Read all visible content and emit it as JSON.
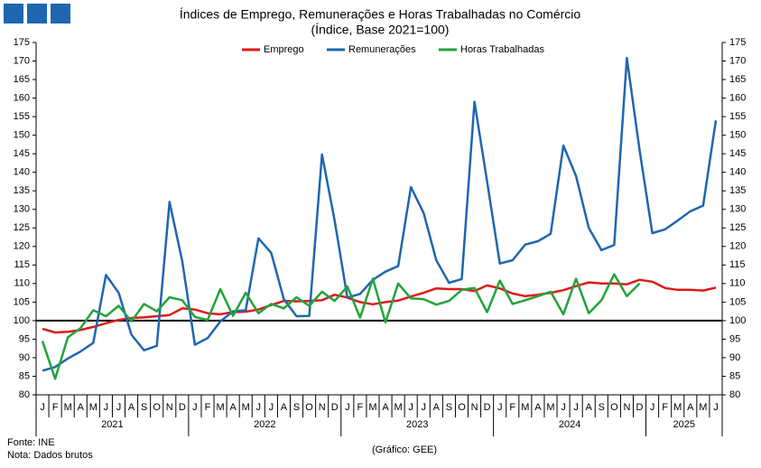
{
  "chart_data": {
    "type": "line",
    "title": "Índices de Emprego, Remunerações e Horas Trabalhadas no Comércio",
    "subtitle": "(Índice, Base 2021=100)",
    "categories": [
      "J",
      "F",
      "M",
      "A",
      "M",
      "J",
      "J",
      "A",
      "S",
      "O",
      "N",
      "D",
      "J",
      "F",
      "M",
      "A",
      "M",
      "J",
      "J",
      "A",
      "S",
      "O",
      "N",
      "D",
      "J",
      "F",
      "M",
      "A",
      "M",
      "J",
      "J",
      "A",
      "S",
      "O",
      "N",
      "D",
      "J",
      "F",
      "M",
      "A",
      "M",
      "J",
      "J",
      "A",
      "S",
      "O",
      "N",
      "D",
      "J",
      "F",
      "M",
      "A",
      "M",
      "J"
    ],
    "years": [
      "2021",
      "2022",
      "2023",
      "2024",
      "2025"
    ],
    "series": [
      {
        "name": "Emprego",
        "color": "#e0191b",
        "values": [
          97.8,
          96.8,
          97,
          97.5,
          98.3,
          99.3,
          100.2,
          100.7,
          100.9,
          101.2,
          101.5,
          103.3,
          103,
          102,
          101.7,
          102.3,
          102.4,
          103,
          104.2,
          105.3,
          105.2,
          105.3,
          105.5,
          107,
          106.2,
          105,
          104.4,
          105,
          105.4,
          106.5,
          107.5,
          108.7,
          108.5,
          108.5,
          108,
          109.5,
          108.7,
          107.3,
          106.6,
          107,
          107.5,
          108.2,
          109.3,
          110.3,
          110,
          110,
          109.8,
          111,
          110.5,
          108.8,
          108.3,
          108.3,
          108.1,
          108.9
        ]
      },
      {
        "name": "Remunerações",
        "color": "#1f66b0",
        "values": [
          86.5,
          87.5,
          89.8,
          91.7,
          94,
          112.3,
          107.5,
          96.2,
          92,
          93.2,
          132,
          116,
          93.5,
          95.3,
          99.8,
          102.5,
          102.8,
          122.2,
          118.3,
          105.8,
          101.2,
          101.3,
          144.8,
          127,
          106.2,
          107.2,
          111,
          113.2,
          114.7,
          136,
          129,
          116.3,
          110.2,
          111.2,
          159,
          137.5,
          115.4,
          116.3,
          120.5,
          121.4,
          123.4,
          147.2,
          139,
          125,
          119,
          120.4,
          170.8,
          146,
          123.6,
          124.6,
          127,
          129.5,
          131,
          154
        ]
      },
      {
        "name": "Horas Trabalhadas",
        "color": "#22a33a",
        "values": [
          94.5,
          84.3,
          95.5,
          98,
          102.8,
          101.2,
          104,
          99.8,
          104.5,
          102.5,
          106.3,
          105.5,
          101,
          100.2,
          108.5,
          101.3,
          107.5,
          102,
          104.5,
          103.3,
          106.3,
          104,
          107.8,
          105.3,
          109.2,
          100.8,
          111.3,
          99.5,
          110,
          106,
          105.8,
          104.3,
          105.3,
          108.3,
          108.8,
          102.3,
          110.8,
          104.5,
          105.5,
          106.6,
          107.8,
          101.7,
          111.3,
          102,
          105.5,
          112.5,
          106.6,
          110,
          null,
          null,
          null,
          null,
          null,
          null
        ]
      }
    ],
    "reference_line": 100,
    "ylim": [
      80,
      175
    ],
    "yticks": [
      80,
      85,
      90,
      95,
      100,
      105,
      110,
      115,
      120,
      125,
      130,
      135,
      140,
      145,
      150,
      155,
      160,
      165,
      170,
      175
    ],
    "y2lim": [
      80,
      175
    ],
    "y2ticks": [
      80,
      85,
      90,
      95,
      100,
      105,
      110,
      115,
      120,
      125,
      130,
      135,
      140,
      145,
      150,
      155,
      160,
      165,
      170,
      175
    ],
    "source": "Fonte: INE",
    "note": "Nota: Dados brutos",
    "credit": "(Gráfico: GEE)"
  }
}
